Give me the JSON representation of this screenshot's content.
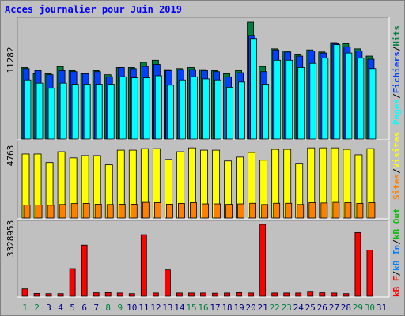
{
  "title": "Acces journalier pour Juin 2019",
  "colors": {
    "background": "#c0c0c0",
    "title": "#0000ff",
    "hits": "#008040",
    "files": "#0040ff",
    "pages": "#00ffff",
    "visits": "#ffff00",
    "sites": "#ff8000",
    "kb_in": "#0080ff",
    "kb_out": "#00c000",
    "kb_f": "#ff0000",
    "weekend_day": "#008040",
    "weekday": "#000080"
  },
  "axis_labels": {
    "top_max": "11282",
    "middle_max": "4763",
    "bottom_max": "3328953"
  },
  "right_legends": {
    "top": [
      {
        "text": "Pages",
        "color": "#00ffff"
      },
      {
        "text": "/",
        "color": "#000000"
      },
      {
        "text": "Fichiers",
        "color": "#0040ff"
      },
      {
        "text": "/",
        "color": "#000000"
      },
      {
        "text": "Hits",
        "color": "#008040"
      }
    ],
    "middle": [
      {
        "text": "Sites",
        "color": "#ff8000"
      },
      {
        "text": "/",
        "color": "#000000"
      },
      {
        "text": "Visites",
        "color": "#ffff00"
      }
    ],
    "bottom": [
      {
        "text": "kB F",
        "color": "#ff0000"
      },
      {
        "text": "/",
        "color": "#000000"
      },
      {
        "text": "kB In",
        "color": "#0080ff"
      },
      {
        "text": "/",
        "color": "#000000"
      },
      {
        "text": "kB Out",
        "color": "#00c000"
      }
    ]
  },
  "chart_data": {
    "type": "bar",
    "categories": [
      "1",
      "2",
      "3",
      "4",
      "5",
      "6",
      "7",
      "8",
      "9",
      "10",
      "11",
      "12",
      "13",
      "14",
      "15",
      "16",
      "17",
      "18",
      "19",
      "20",
      "21",
      "22",
      "23",
      "24",
      "25",
      "26",
      "27",
      "28",
      "29",
      "30",
      "31"
    ],
    "weekend_days": [
      1,
      2,
      8,
      9,
      15,
      16,
      22,
      23,
      29,
      30
    ],
    "panels": [
      {
        "name": "hits-files-pages",
        "ymax": 11282,
        "series": [
          {
            "name": "Hits",
            "values": [
              6900,
              6300,
              6300,
              7000,
              6600,
              6300,
              6600,
              6200,
              6900,
              6900,
              7400,
              7600,
              6700,
              6800,
              6900,
              6700,
              6600,
              6300,
              6600,
              11282,
              7000,
              8700,
              8500,
              8200,
              8600,
              8400,
              9300,
              9200,
              8700,
              8000,
              0
            ]
          },
          {
            "name": "Fichiers",
            "values": [
              6800,
              6600,
              6200,
              6600,
              6500,
              6300,
              6500,
              6000,
              6900,
              6800,
              7000,
              7200,
              6600,
              6700,
              6700,
              6600,
              6500,
              6000,
              6400,
              10000,
              6500,
              8600,
              8400,
              8000,
              8500,
              8300,
              9200,
              8900,
              8500,
              7700,
              0
            ]
          },
          {
            "name": "Pages",
            "values": [
              5700,
              5400,
              4900,
              5400,
              5300,
              5300,
              5300,
              5300,
              6000,
              5900,
              5900,
              6100,
              5200,
              5700,
              6000,
              5800,
              5700,
              5000,
              5500,
              9700,
              5300,
              7600,
              7600,
              6900,
              7300,
              7800,
              9100,
              8300,
              7800,
              6800,
              0
            ]
          }
        ]
      },
      {
        "name": "visits-sites",
        "ymax": 4763,
        "series": [
          {
            "name": "Visites",
            "values": [
              4150,
              4150,
              3600,
              4300,
              3900,
              4050,
              4050,
              3450,
              4400,
              4400,
              4500,
              4500,
              3800,
              4300,
              4550,
              4400,
              4400,
              3700,
              3950,
              4250,
              3750,
              4450,
              4450,
              3550,
              4550,
              4550,
              4550,
              4450,
              4100,
              4500,
              0
            ]
          },
          {
            "name": "Sites",
            "values": [
              850,
              850,
              830,
              880,
              940,
              950,
              900,
              880,
              900,
              900,
              1020,
              1000,
              900,
              950,
              1000,
              920,
              920,
              890,
              920,
              960,
              880,
              960,
              960,
              880,
              1000,
              980,
              1020,
              1000,
              950,
              1000,
              0
            ]
          }
        ]
      },
      {
        "name": "kb-f",
        "ymax": 3328953,
        "series": [
          {
            "name": "kB F",
            "values": [
              340000,
              130000,
              120000,
              120000,
              1280000,
              2370000,
              160000,
              170000,
              150000,
              120000,
              2850000,
              150000,
              1220000,
              150000,
              150000,
              150000,
              140000,
              150000,
              170000,
              150000,
              3328953,
              150000,
              150000,
              150000,
              230000,
              160000,
              150000,
              120000,
              2950000,
              2140000,
              0
            ]
          }
        ]
      }
    ]
  }
}
